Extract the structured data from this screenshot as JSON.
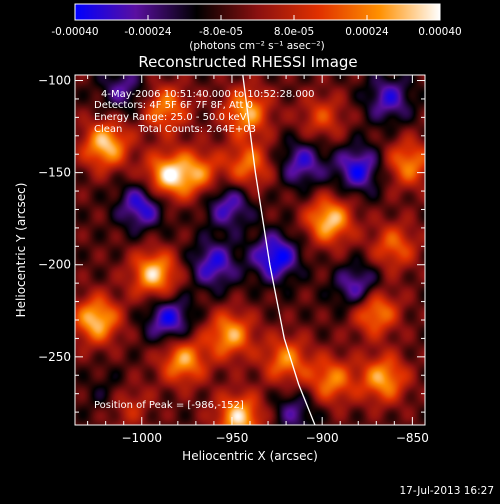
{
  "colorbar": {
    "tick_labels": [
      "-0.00040",
      "-0.00024",
      "-8.0e-05",
      "8.0e-05",
      "0.00024",
      "0.00040"
    ],
    "tick_values": [
      -0.0004,
      -0.00024,
      -8e-05,
      8e-05,
      0.00024,
      0.0004
    ],
    "range": [
      -0.0004,
      0.0004
    ],
    "units_label": "(photons cm⁻² s⁻¹ asec⁻²)",
    "colormap": [
      "#0000ff",
      "#5a0fa0",
      "#000000",
      "#8a1010",
      "#e03000",
      "#ff9000",
      "#ffffff"
    ]
  },
  "chart_data": {
    "type": "heatmap",
    "title": "Reconstructed RHESSI Image",
    "xlabel": "Heliocentric X (arcsec)",
    "ylabel": "Heliocentric Y (arcsec)",
    "xlim": [
      -1037,
      -843
    ],
    "ylim": [
      -287,
      -97
    ],
    "x_ticks": [
      -1000,
      -950,
      -900,
      -850
    ],
    "x_tick_labels": [
      "−1000",
      "−950",
      "−900",
      "−850"
    ],
    "y_ticks": [
      -250,
      -200,
      -150,
      -100
    ],
    "y_tick_labels": [
      "−250",
      "−200",
      "−150",
      "−100"
    ],
    "annotations": [
      "4-May-2006 10:51:40.000 to 10:52:28.000",
      "Detectors: 4F 5F 6F 7F 8F, Att 0",
      "Energy Range: 25.0 - 50.0 keV",
      "Clean     Total Counts: 2.64E+03"
    ],
    "peak_label": "Position of Peak = [-986,-152]",
    "peak": [
      -986,
      -152
    ],
    "limb_curve": [
      [
        -944,
        -97
      ],
      [
        -937,
        -150
      ],
      [
        -929,
        -200
      ],
      [
        -921,
        -240
      ],
      [
        -913,
        -265
      ],
      [
        -904,
        -287
      ]
    ],
    "blobs": [
      {
        "x": -1020,
        "y": -135,
        "v": 0.0004
      },
      {
        "x": -1025,
        "y": -230,
        "v": 0.0004
      },
      {
        "x": -993,
        "y": -205,
        "v": 0.0004
      },
      {
        "x": -986,
        "y": -152,
        "v": 0.0004
      },
      {
        "x": -987,
        "y": -115,
        "v": 0.0003
      },
      {
        "x": -969,
        "y": -150,
        "v": 0.00028
      },
      {
        "x": -942,
        "y": -117,
        "v": 0.00035
      },
      {
        "x": -941,
        "y": -146,
        "v": 0.00028
      },
      {
        "x": -977,
        "y": -252,
        "v": 0.00035
      },
      {
        "x": -951,
        "y": -238,
        "v": 0.00035
      },
      {
        "x": -946,
        "y": -283,
        "v": 0.0004
      },
      {
        "x": -920,
        "y": -252,
        "v": 0.0003
      },
      {
        "x": -896,
        "y": -176,
        "v": 0.0004
      },
      {
        "x": -895,
        "y": -263,
        "v": 0.0003
      },
      {
        "x": -871,
        "y": -225,
        "v": 0.00035
      },
      {
        "x": -866,
        "y": -262,
        "v": 0.00035
      },
      {
        "x": -852,
        "y": -145,
        "v": 0.0003
      },
      {
        "x": -860,
        "y": -190,
        "v": 0.00025
      },
      {
        "x": -900,
        "y": -120,
        "v": 0.0002
      },
      {
        "x": -1010,
        "y": -275,
        "v": 0.00028
      },
      {
        "x": -985,
        "y": -230,
        "v": -0.0003
      },
      {
        "x": -1000,
        "y": -168,
        "v": -0.0003
      },
      {
        "x": -960,
        "y": -200,
        "v": -0.00028
      },
      {
        "x": -926,
        "y": -196,
        "v": -0.00035
      },
      {
        "x": -952,
        "y": -168,
        "v": -0.00025
      },
      {
        "x": -911,
        "y": -145,
        "v": -0.00025
      },
      {
        "x": -880,
        "y": -148,
        "v": -0.0003
      },
      {
        "x": -880,
        "y": -213,
        "v": -0.00028
      },
      {
        "x": -1015,
        "y": -272,
        "v": -0.00022
      },
      {
        "x": -1010,
        "y": -105,
        "v": -0.0002
      },
      {
        "x": -915,
        "y": -280,
        "v": -0.00018
      },
      {
        "x": -863,
        "y": -110,
        "v": -0.00025
      }
    ]
  },
  "footer": {
    "date": "17-Jul-2013 16:27"
  }
}
